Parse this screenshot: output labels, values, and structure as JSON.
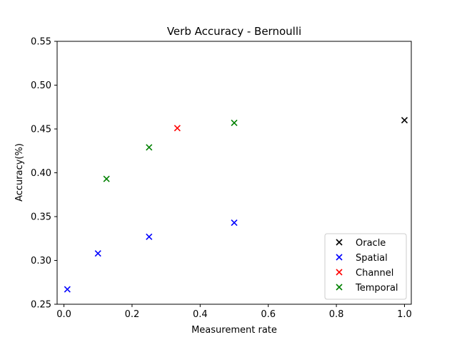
{
  "chart_data": {
    "type": "scatter",
    "title": "Verb Accuracy - Bernoulli",
    "xlabel": "Measurement rate",
    "ylabel": "Accuracy(%)",
    "xlim": [
      -0.02,
      1.02
    ],
    "ylim": [
      0.25,
      0.55
    ],
    "xticks": [
      0.0,
      0.2,
      0.4,
      0.6,
      0.8,
      1.0
    ],
    "xtick_labels": [
      "0.0",
      "0.2",
      "0.4",
      "0.6",
      "0.8",
      "1.0"
    ],
    "yticks": [
      0.25,
      0.3,
      0.35,
      0.4,
      0.45,
      0.5,
      0.55
    ],
    "ytick_labels": [
      "0.25",
      "0.30",
      "0.35",
      "0.40",
      "0.45",
      "0.50",
      "0.55"
    ],
    "grid": false,
    "legend_position": "lower-right",
    "marker": "x",
    "series": [
      {
        "name": "Oracle",
        "color": "#000000",
        "x": [
          1.0
        ],
        "y": [
          0.46
        ]
      },
      {
        "name": "Spatial",
        "color": "#0000ff",
        "x": [
          0.01,
          0.1,
          0.25,
          0.5
        ],
        "y": [
          0.267,
          0.308,
          0.327,
          0.343
        ]
      },
      {
        "name": "Channel",
        "color": "#ff0000",
        "x": [
          0.333
        ],
        "y": [
          0.451
        ]
      },
      {
        "name": "Temporal",
        "color": "#008000",
        "x": [
          0.125,
          0.25,
          0.5
        ],
        "y": [
          0.393,
          0.429,
          0.457
        ]
      }
    ]
  }
}
